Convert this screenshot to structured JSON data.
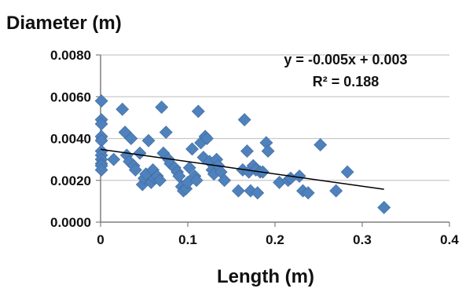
{
  "chart_data": {
    "type": "scatter",
    "title": "",
    "xlabel": "Length (m)",
    "ylabel": "Diameter (m)",
    "xlim": [
      0,
      0.4
    ],
    "ylim": [
      0,
      0.008
    ],
    "x_ticks": [
      0,
      0.1,
      0.2,
      0.3,
      0.4
    ],
    "x_tick_labels": [
      "0",
      "0.1",
      "0.2",
      "0.3",
      "0.4"
    ],
    "y_ticks": [
      0,
      0.002,
      0.004,
      0.006,
      0.008
    ],
    "y_tick_labels": [
      "0.0000",
      "0.0020",
      "0.0040",
      "0.0060",
      "0.0080"
    ],
    "grid": "horizontal",
    "legend": "none",
    "marker": "diamond",
    "point_color": "#4F81BD",
    "trendline": {
      "type": "linear",
      "color": "#000000",
      "x_range": [
        0,
        0.325
      ],
      "equation": "y = -0.005x + 0.003",
      "r_squared": "R² = 0.188"
    },
    "points": [
      [
        0.001,
        0.0058
      ],
      [
        0.001,
        0.0049
      ],
      [
        0.001,
        0.0047
      ],
      [
        0.001,
        0.0041
      ],
      [
        0.001,
        0.0039
      ],
      [
        0.001,
        0.0034
      ],
      [
        0.001,
        0.0032
      ],
      [
        0.001,
        0.003
      ],
      [
        0.001,
        0.0028
      ],
      [
        0.001,
        0.0027
      ],
      [
        0.001,
        0.0025
      ],
      [
        0.015,
        0.003
      ],
      [
        0.025,
        0.0054
      ],
      [
        0.028,
        0.0043
      ],
      [
        0.03,
        0.0032
      ],
      [
        0.033,
        0.0029
      ],
      [
        0.035,
        0.004
      ],
      [
        0.038,
        0.0027
      ],
      [
        0.04,
        0.0025
      ],
      [
        0.045,
        0.0033
      ],
      [
        0.048,
        0.0018
      ],
      [
        0.05,
        0.0021
      ],
      [
        0.052,
        0.0023
      ],
      [
        0.055,
        0.0039
      ],
      [
        0.058,
        0.0019
      ],
      [
        0.06,
        0.0025
      ],
      [
        0.062,
        0.0021
      ],
      [
        0.065,
        0.0022
      ],
      [
        0.068,
        0.002
      ],
      [
        0.07,
        0.0055
      ],
      [
        0.072,
        0.0033
      ],
      [
        0.075,
        0.0043
      ],
      [
        0.078,
        0.003
      ],
      [
        0.08,
        0.0028
      ],
      [
        0.085,
        0.0026
      ],
      [
        0.088,
        0.0024
      ],
      [
        0.09,
        0.0022
      ],
      [
        0.093,
        0.0017
      ],
      [
        0.095,
        0.0015
      ],
      [
        0.098,
        0.0016
      ],
      [
        0.1,
        0.0019
      ],
      [
        0.102,
        0.0026
      ],
      [
        0.105,
        0.0035
      ],
      [
        0.108,
        0.0022
      ],
      [
        0.11,
        0.002
      ],
      [
        0.112,
        0.0053
      ],
      [
        0.115,
        0.0038
      ],
      [
        0.118,
        0.0031
      ],
      [
        0.12,
        0.0041
      ],
      [
        0.122,
        0.004
      ],
      [
        0.125,
        0.0029
      ],
      [
        0.128,
        0.0025
      ],
      [
        0.13,
        0.0023
      ],
      [
        0.133,
        0.003
      ],
      [
        0.135,
        0.0027
      ],
      [
        0.138,
        0.0024
      ],
      [
        0.142,
        0.002
      ],
      [
        0.158,
        0.0015
      ],
      [
        0.163,
        0.0025
      ],
      [
        0.165,
        0.0049
      ],
      [
        0.168,
        0.0034
      ],
      [
        0.17,
        0.0024
      ],
      [
        0.172,
        0.0015
      ],
      [
        0.175,
        0.0027
      ],
      [
        0.178,
        0.0025
      ],
      [
        0.18,
        0.0014
      ],
      [
        0.183,
        0.0024
      ],
      [
        0.186,
        0.0024
      ],
      [
        0.19,
        0.0038
      ],
      [
        0.192,
        0.0034
      ],
      [
        0.205,
        0.0019
      ],
      [
        0.215,
        0.002
      ],
      [
        0.218,
        0.0021
      ],
      [
        0.228,
        0.0022
      ],
      [
        0.232,
        0.0015
      ],
      [
        0.238,
        0.0014
      ],
      [
        0.252,
        0.0037
      ],
      [
        0.27,
        0.0015
      ],
      [
        0.283,
        0.0024
      ],
      [
        0.325,
        0.0007
      ]
    ]
  }
}
